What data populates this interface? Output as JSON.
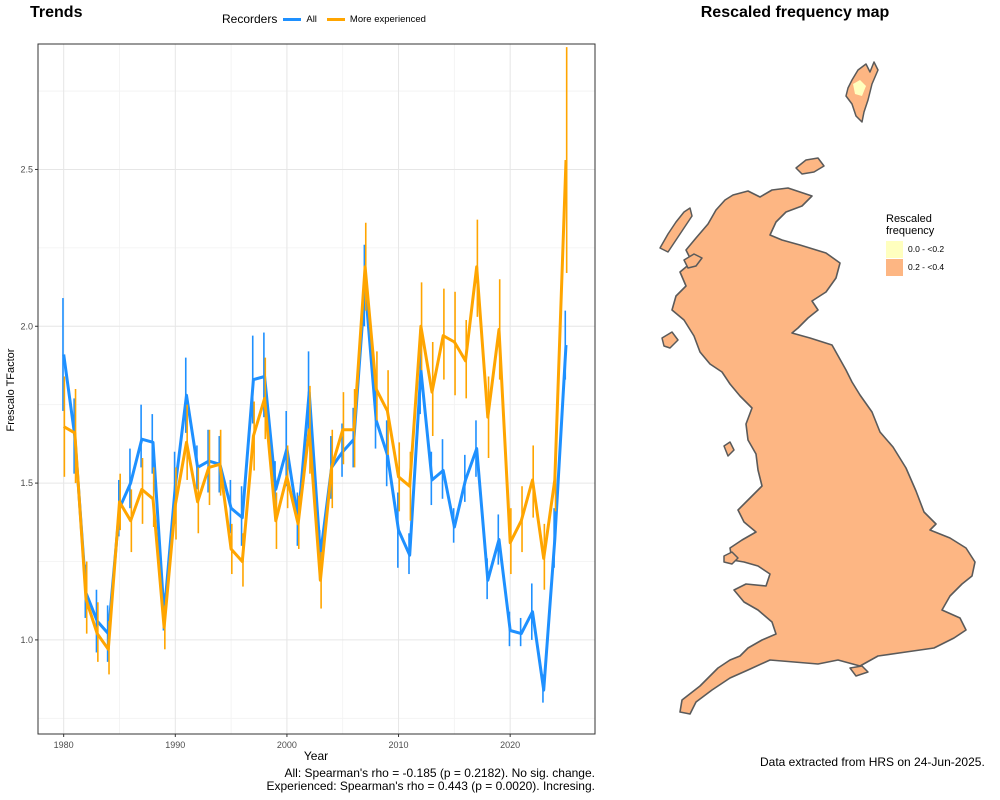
{
  "chart_data": {
    "type": "line",
    "title": "Trends",
    "xlabel": "Year",
    "ylabel": "Frescalo TFactor",
    "xlim": [
      1977.7,
      2027.6
    ],
    "ylim": [
      0.7,
      2.9
    ],
    "x_ticks": [
      1980,
      1990,
      2000,
      2010,
      2020
    ],
    "y_ticks": [
      1.0,
      1.5,
      2.0,
      2.5
    ],
    "y_tick_labels": [
      "1.0",
      "1.5",
      "2.0",
      "2.5"
    ],
    "grid": true,
    "legend": {
      "title": "Recorders",
      "position": "top"
    },
    "x": [
      1980,
      1981,
      1982,
      1983,
      1984,
      1985,
      1986,
      1987,
      1988,
      1989,
      1990,
      1991,
      1992,
      1993,
      1994,
      1995,
      1996,
      1997,
      1998,
      1999,
      2000,
      2001,
      2002,
      2003,
      2004,
      2005,
      2006,
      2007,
      2008,
      2009,
      2010,
      2011,
      2012,
      2013,
      2014,
      2015,
      2016,
      2017,
      2018,
      2019,
      2020,
      2021,
      2022,
      2023,
      2024,
      2025
    ],
    "series": [
      {
        "name": "All",
        "color": "#1e90ff",
        "values": [
          1.91,
          1.65,
          1.15,
          1.06,
          1.02,
          1.42,
          1.5,
          1.64,
          1.63,
          1.08,
          1.49,
          1.78,
          1.55,
          1.57,
          1.56,
          1.42,
          1.39,
          1.83,
          1.84,
          1.48,
          1.61,
          1.38,
          1.79,
          1.27,
          1.55,
          1.6,
          1.64,
          2.13,
          1.7,
          1.59,
          1.35,
          1.27,
          1.86,
          1.51,
          1.54,
          1.36,
          1.51,
          1.61,
          1.19,
          1.32,
          1.03,
          1.02,
          1.09,
          0.84,
          1.32,
          1.94
        ],
        "lower": [
          1.73,
          1.53,
          1.07,
          0.96,
          0.93,
          1.33,
          1.42,
          1.55,
          1.53,
          1.03,
          1.37,
          1.66,
          1.48,
          1.47,
          1.47,
          1.34,
          1.3,
          1.69,
          1.71,
          1.39,
          1.49,
          1.3,
          1.65,
          1.19,
          1.45,
          1.52,
          1.55,
          2.0,
          1.61,
          1.49,
          1.23,
          1.21,
          1.72,
          1.43,
          1.45,
          1.31,
          1.44,
          1.52,
          1.13,
          1.24,
          0.98,
          0.98,
          1.0,
          0.8,
          1.23,
          1.83
        ],
        "upper": [
          2.09,
          1.77,
          1.24,
          1.16,
          1.11,
          1.51,
          1.61,
          1.75,
          1.72,
          1.15,
          1.6,
          1.9,
          1.62,
          1.67,
          1.65,
          1.51,
          1.49,
          1.97,
          1.98,
          1.57,
          1.73,
          1.47,
          1.92,
          1.35,
          1.65,
          1.69,
          1.74,
          2.26,
          1.8,
          1.7,
          1.47,
          1.34,
          1.99,
          1.6,
          1.64,
          1.42,
          1.59,
          1.7,
          1.26,
          1.4,
          1.09,
          1.07,
          1.18,
          0.89,
          1.42,
          2.05
        ]
      },
      {
        "name": "More experienced",
        "color": "#ffa500",
        "values": [
          1.68,
          1.66,
          1.13,
          1.02,
          0.97,
          1.44,
          1.38,
          1.48,
          1.45,
          1.04,
          1.43,
          1.63,
          1.44,
          1.55,
          1.56,
          1.29,
          1.25,
          1.65,
          1.77,
          1.38,
          1.52,
          1.37,
          1.67,
          1.19,
          1.55,
          1.67,
          1.67,
          2.19,
          1.8,
          1.73,
          1.52,
          1.49,
          2.0,
          1.79,
          1.97,
          1.95,
          1.89,
          2.19,
          1.71,
          1.99,
          1.31,
          1.38,
          1.51,
          1.26,
          1.51,
          2.53
        ],
        "lower": [
          1.52,
          1.5,
          1.02,
          0.93,
          0.89,
          1.35,
          1.28,
          1.37,
          1.36,
          0.97,
          1.32,
          1.51,
          1.34,
          1.43,
          1.46,
          1.21,
          1.17,
          1.54,
          1.64,
          1.29,
          1.42,
          1.29,
          1.53,
          1.1,
          1.42,
          1.56,
          1.55,
          2.05,
          1.7,
          1.59,
          1.41,
          1.38,
          1.86,
          1.65,
          1.83,
          1.78,
          1.77,
          2.03,
          1.58,
          1.83,
          1.21,
          1.28,
          1.39,
          1.16,
          1.41,
          2.17
        ],
        "upper": [
          1.84,
          1.8,
          1.25,
          1.12,
          1.06,
          1.53,
          1.48,
          1.58,
          1.55,
          1.11,
          1.55,
          1.75,
          1.55,
          1.67,
          1.67,
          1.37,
          1.34,
          1.76,
          1.9,
          1.47,
          1.62,
          1.46,
          1.81,
          1.28,
          1.67,
          1.79,
          1.8,
          2.33,
          1.92,
          1.86,
          1.63,
          1.6,
          2.14,
          1.95,
          2.12,
          2.11,
          2.02,
          2.34,
          1.84,
          2.15,
          1.42,
          1.49,
          1.62,
          1.37,
          1.61,
          2.89
        ]
      }
    ]
  },
  "stats": {
    "all": "All: Spearman's rho = -0.185 (p = 0.2182). No sig. change.",
    "experienced": "Experienced: Spearman's rho = 0.443 (p = 0.0020). Incresing."
  },
  "map": {
    "title": "Rescaled frequency map",
    "legend_title": "Rescaled frequency",
    "legend_items": [
      {
        "label": "0.0 - <0.2",
        "color": "#ffffbf"
      },
      {
        "label": "0.2 - <0.4",
        "color": "#fdb683"
      }
    ],
    "land_color": "#fdb683",
    "outline_color": "#5a5a5a"
  },
  "footnote": "Data extracted from HRS on 24-Jun-2025."
}
